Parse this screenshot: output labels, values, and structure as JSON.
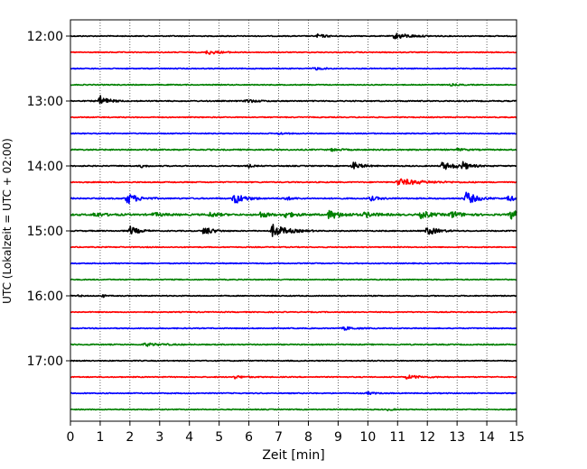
{
  "chart_data": {
    "type": "line",
    "title": "",
    "xlabel": "Zeit  [min]",
    "ylabel": "UTC (Lokalzeit = UTC + 02:00)",
    "xlim": [
      0,
      15
    ],
    "x_ticks": [
      "0",
      "1",
      "2",
      "3",
      "4",
      "5",
      "6",
      "7",
      "8",
      "9",
      "10",
      "11",
      "12",
      "13",
      "14",
      "15"
    ],
    "y_ticks": [
      {
        "label": "12:00",
        "trace_index": 0
      },
      {
        "label": "13:00",
        "trace_index": 4
      },
      {
        "label": "14:00",
        "trace_index": 8
      },
      {
        "label": "15:00",
        "trace_index": 12
      },
      {
        "label": "16:00",
        "trace_index": 16
      },
      {
        "label": "17:00",
        "trace_index": 20
      }
    ],
    "grid": "vertical dotted at every minute",
    "trace_minutes": 15,
    "trace_colors": [
      "#000000",
      "#ff0000",
      "#0000ff",
      "#008000"
    ],
    "traces": [
      {
        "start": "12:00",
        "noise": 0.3,
        "events": [
          {
            "t": 8.3,
            "amp": 1.2,
            "dur": 0.5
          },
          {
            "t": 10.9,
            "amp": 2.0,
            "dur": 0.8
          }
        ]
      },
      {
        "start": "12:15",
        "noise": 0.3,
        "events": [
          {
            "t": 4.6,
            "amp": 1.4,
            "dur": 0.6
          }
        ]
      },
      {
        "start": "12:30",
        "noise": 0.3,
        "events": [
          {
            "t": 8.2,
            "amp": 1.0,
            "dur": 0.4
          }
        ]
      },
      {
        "start": "12:45",
        "noise": 0.3,
        "events": [
          {
            "t": 12.8,
            "amp": 0.6,
            "dur": 0.4
          }
        ]
      },
      {
        "start": "13:00",
        "noise": 0.35,
        "events": [
          {
            "t": 1.0,
            "amp": 3.5,
            "dur": 0.4
          },
          {
            "t": 5.9,
            "amp": 1.2,
            "dur": 0.5
          }
        ]
      },
      {
        "start": "13:15",
        "noise": 0.3,
        "events": []
      },
      {
        "start": "13:30",
        "noise": 0.3,
        "events": [
          {
            "t": 7.0,
            "amp": 0.8,
            "dur": 0.3
          }
        ]
      },
      {
        "start": "13:45",
        "noise": 0.4,
        "events": [
          {
            "t": 8.8,
            "amp": 0.8,
            "dur": 0.4
          },
          {
            "t": 13.0,
            "amp": 0.7,
            "dur": 0.4
          }
        ]
      },
      {
        "start": "14:00",
        "noise": 0.35,
        "events": [
          {
            "t": 2.4,
            "amp": 1.0,
            "dur": 0.2
          },
          {
            "t": 6.0,
            "amp": 1.0,
            "dur": 0.2
          },
          {
            "t": 9.5,
            "amp": 2.8,
            "dur": 0.4
          },
          {
            "t": 12.5,
            "amp": 2.5,
            "dur": 0.8
          },
          {
            "t": 13.2,
            "amp": 2.3,
            "dur": 0.3
          }
        ]
      },
      {
        "start": "14:15",
        "noise": 0.35,
        "events": [
          {
            "t": 11.0,
            "amp": 2.3,
            "dur": 1.2
          }
        ]
      },
      {
        "start": "14:30",
        "noise": 0.4,
        "events": [
          {
            "t": 1.9,
            "amp": 4.0,
            "dur": 0.5
          },
          {
            "t": 5.5,
            "amp": 4.0,
            "dur": 0.5
          },
          {
            "t": 7.2,
            "amp": 1.2,
            "dur": 0.4
          },
          {
            "t": 10.1,
            "amp": 1.4,
            "dur": 0.4
          },
          {
            "t": 13.3,
            "amp": 4.5,
            "dur": 0.5
          },
          {
            "t": 14.7,
            "amp": 2.0,
            "dur": 0.4
          }
        ]
      },
      {
        "start": "14:45",
        "noise": 0.55,
        "events": [
          {
            "t": 0.8,
            "amp": 1.5,
            "dur": 0.5
          },
          {
            "t": 2.8,
            "amp": 1.2,
            "dur": 0.5
          },
          {
            "t": 4.7,
            "amp": 1.6,
            "dur": 0.4
          },
          {
            "t": 6.4,
            "amp": 2.0,
            "dur": 0.4
          },
          {
            "t": 7.2,
            "amp": 2.0,
            "dur": 0.5
          },
          {
            "t": 8.7,
            "amp": 3.0,
            "dur": 0.6
          },
          {
            "t": 9.9,
            "amp": 1.6,
            "dur": 0.6
          },
          {
            "t": 11.8,
            "amp": 2.6,
            "dur": 0.5
          },
          {
            "t": 12.8,
            "amp": 2.4,
            "dur": 0.5
          },
          {
            "t": 14.8,
            "amp": 3.0,
            "dur": 0.6
          }
        ]
      },
      {
        "start": "15:00",
        "noise": 0.35,
        "events": [
          {
            "t": 2.0,
            "amp": 3.2,
            "dur": 0.4
          },
          {
            "t": 4.5,
            "amp": 3.2,
            "dur": 0.4
          },
          {
            "t": 6.8,
            "amp": 4.5,
            "dur": 0.7
          },
          {
            "t": 12.0,
            "amp": 3.0,
            "dur": 0.5
          }
        ]
      },
      {
        "start": "15:15",
        "noise": 0.3,
        "events": []
      },
      {
        "start": "15:30",
        "noise": 0.3,
        "events": []
      },
      {
        "start": "15:45",
        "noise": 0.3,
        "events": []
      },
      {
        "start": "16:00",
        "noise": 0.3,
        "events": [
          {
            "t": 0.3,
            "amp": 0.8,
            "dur": 0.1
          },
          {
            "t": 1.1,
            "amp": 1.0,
            "dur": 0.1
          }
        ]
      },
      {
        "start": "16:15",
        "noise": 0.3,
        "events": []
      },
      {
        "start": "16:30",
        "noise": 0.3,
        "events": [
          {
            "t": 9.2,
            "amp": 1.2,
            "dur": 0.5
          }
        ]
      },
      {
        "start": "16:45",
        "noise": 0.35,
        "events": [
          {
            "t": 2.5,
            "amp": 1.0,
            "dur": 0.8
          }
        ]
      },
      {
        "start": "17:00",
        "noise": 0.3,
        "events": []
      },
      {
        "start": "17:15",
        "noise": 0.3,
        "events": [
          {
            "t": 5.5,
            "amp": 1.0,
            "dur": 0.5
          },
          {
            "t": 11.3,
            "amp": 1.2,
            "dur": 0.8
          }
        ]
      },
      {
        "start": "17:30",
        "noise": 0.3,
        "events": [
          {
            "t": 10.0,
            "amp": 0.8,
            "dur": 0.4
          }
        ]
      },
      {
        "start": "17:45",
        "noise": 0.3,
        "events": [
          {
            "t": 10.7,
            "amp": 0.8,
            "dur": 0.2
          }
        ]
      }
    ]
  }
}
